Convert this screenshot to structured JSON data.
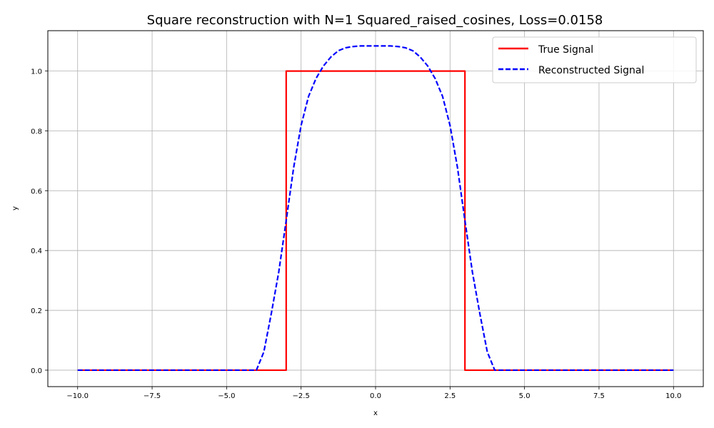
{
  "chart_data": {
    "type": "line",
    "title": "Square reconstruction with N=1 Squared_raised_cosines, Loss=0.0158",
    "xlabel": "x",
    "ylabel": "y",
    "xlim": [
      -11.0,
      11.0
    ],
    "ylim": [
      -0.055,
      1.135
    ],
    "xticks": [
      -10.0,
      -7.5,
      -5.0,
      -2.5,
      0.0,
      2.5,
      5.0,
      7.5,
      10.0
    ],
    "xtick_labels": [
      "−10.0",
      "−7.5",
      "−5.0",
      "−2.5",
      "0.0",
      "2.5",
      "5.0",
      "7.5",
      "10.0"
    ],
    "yticks": [
      0.0,
      0.2,
      0.4,
      0.6,
      0.8,
      1.0
    ],
    "ytick_labels": [
      "0.0",
      "0.2",
      "0.4",
      "0.6",
      "0.8",
      "1.0"
    ],
    "grid": true,
    "legend_position": "top-right",
    "series": [
      {
        "name": "True Signal",
        "color": "#ff0000",
        "style": "solid",
        "x": [
          -10.0,
          -3.0,
          -3.0,
          3.0,
          3.0,
          10.0
        ],
        "y": [
          0.0,
          0.0,
          1.0,
          1.0,
          0.0,
          0.0
        ]
      },
      {
        "name": "Reconstructed Signal",
        "color": "#0000ff",
        "style": "dashed",
        "x": [
          -10.0,
          -4.1,
          -4.0,
          -3.75,
          -3.5,
          -3.25,
          -3.0,
          -2.75,
          -2.5,
          -2.25,
          -2.0,
          -1.75,
          -1.5,
          -1.25,
          -1.0,
          -0.75,
          -0.5,
          0.0,
          0.5,
          0.75,
          1.0,
          1.25,
          1.5,
          1.75,
          2.0,
          2.25,
          2.5,
          2.75,
          3.0,
          3.25,
          3.5,
          3.75,
          4.0,
          4.1,
          10.0
        ],
        "y": [
          0.0,
          0.0,
          0.0,
          0.061,
          0.189,
          0.328,
          0.5,
          0.677,
          0.818,
          0.915,
          0.975,
          1.017,
          1.047,
          1.068,
          1.078,
          1.082,
          1.084,
          1.084,
          1.084,
          1.082,
          1.078,
          1.068,
          1.047,
          1.017,
          0.975,
          0.915,
          0.818,
          0.677,
          0.5,
          0.328,
          0.189,
          0.061,
          0.0,
          0.0,
          0.0
        ]
      }
    ]
  }
}
